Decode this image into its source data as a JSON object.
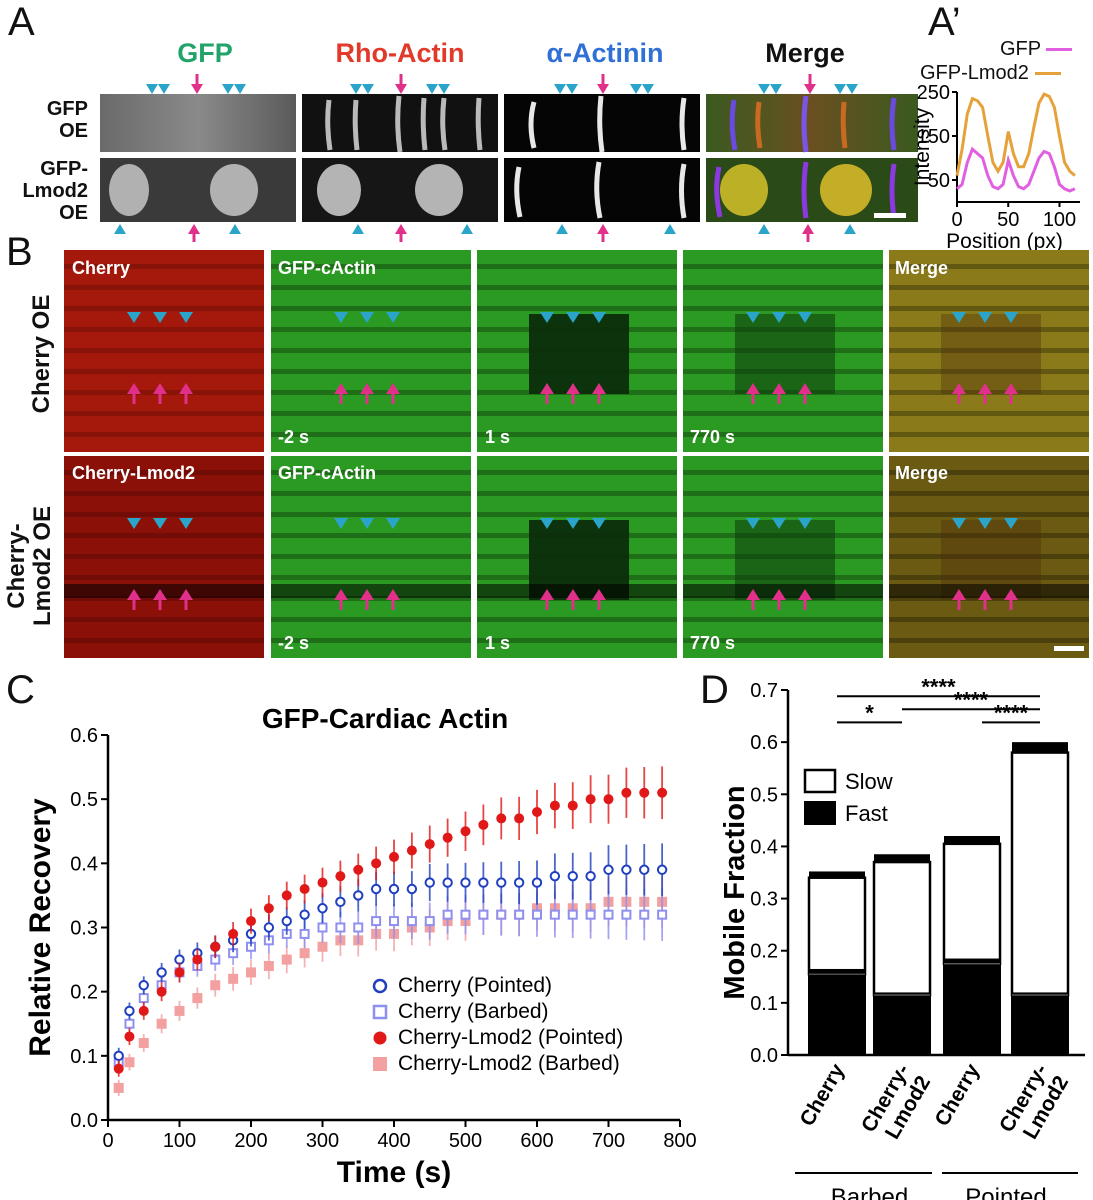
{
  "figure": {
    "panel_a": {
      "letter": "A",
      "headers": [
        {
          "text": "GFP",
          "color": "#22a36a"
        },
        {
          "text": "Rho-Actin",
          "color": "#e23a2a"
        },
        {
          "text": "α-Actinin",
          "color": "#2f6fd6"
        },
        {
          "text": "Merge",
          "color": "#111111"
        }
      ],
      "row_labels": [
        "GFP\nOE",
        "GFP-\nLmod2\nOE"
      ]
    },
    "panel_a_prime": {
      "letter": "A’",
      "legend": [
        {
          "text": "GFP",
          "color": "#e060e0"
        },
        {
          "text": "GFP-Lmod2",
          "color": "#e6a23a"
        }
      ],
      "ylabel": "Intensity",
      "xlabel": "Position (px)",
      "yticks": [
        "250",
        "150",
        "50"
      ],
      "xticks": [
        "0",
        "50",
        "100"
      ]
    },
    "panel_b": {
      "letter": "B",
      "row_labels": [
        "Cherry OE",
        "Cherry-\nLmod2 OE"
      ],
      "top_row_labels": [
        "Cherry",
        "GFP-cActin",
        "",
        "",
        "Merge"
      ],
      "bottom_row_labels": [
        "Cherry-Lmod2",
        "GFP-cActin",
        "",
        "",
        "Merge"
      ],
      "time_labels": [
        "",
        "-2 s",
        "1 s",
        "770 s",
        ""
      ]
    },
    "panel_c": {
      "letter": "C"
    },
    "panel_d": {
      "letter": "D"
    }
  },
  "colors": {
    "cyan_marker": "#2aa5c9",
    "magenta_marker": "#e0308a",
    "cherry_pointed": "#1f3fbf",
    "cherry_barbed": "#8f8ff0",
    "lmod2_pointed": "#e01818",
    "lmod2_barbed": "#f2a0a0"
  },
  "chart_data": [
    {
      "type": "line",
      "id": "A_prime",
      "title": "",
      "xlabel": "Position (px)",
      "ylabel": "Intensity",
      "xlim": [
        0,
        120
      ],
      "ylim": [
        0,
        250
      ],
      "yticks": [
        50,
        150,
        250
      ],
      "xticks": [
        0,
        50,
        100
      ],
      "series": [
        {
          "name": "GFP",
          "color": "#e060e0",
          "x": [
            0,
            5,
            10,
            15,
            20,
            25,
            30,
            35,
            40,
            45,
            50,
            55,
            60,
            65,
            70,
            75,
            80,
            85,
            90,
            95,
            100,
            105,
            110,
            115
          ],
          "y": [
            30,
            40,
            90,
            120,
            110,
            100,
            60,
            35,
            30,
            40,
            95,
            60,
            35,
            30,
            40,
            70,
            100,
            115,
            110,
            80,
            40,
            30,
            25,
            30
          ]
        },
        {
          "name": "GFP-Lmod2",
          "color": "#e6a23a",
          "x": [
            0,
            5,
            10,
            15,
            20,
            25,
            30,
            35,
            40,
            45,
            50,
            55,
            60,
            65,
            70,
            75,
            80,
            85,
            90,
            95,
            100,
            105,
            110,
            115
          ],
          "y": [
            60,
            120,
            200,
            235,
            230,
            215,
            150,
            90,
            70,
            90,
            160,
            110,
            80,
            80,
            110,
            170,
            225,
            245,
            240,
            215,
            150,
            90,
            70,
            60
          ]
        }
      ]
    },
    {
      "type": "scatter",
      "id": "C",
      "title": "GFP-Cardiac Actin",
      "xlabel": "Time (s)",
      "ylabel": "Relative Recovery",
      "xlim": [
        0,
        800
      ],
      "ylim": [
        0,
        0.6
      ],
      "xticks": [
        0,
        100,
        200,
        300,
        400,
        500,
        600,
        700,
        800
      ],
      "yticks": [
        0.0,
        0.1,
        0.2,
        0.3,
        0.4,
        0.5,
        0.6
      ],
      "legend": [
        "Cherry (Pointed)",
        "Cherry (Barbed)",
        "Cherry-Lmod2 (Pointed)",
        "Cherry-Lmod2 (Barbed)"
      ],
      "series": [
        {
          "name": "Cherry (Pointed)",
          "marker": "open-circle",
          "color": "#1f3fbf",
          "x": [
            15,
            30,
            50,
            75,
            100,
            125,
            150,
            175,
            200,
            225,
            250,
            275,
            300,
            325,
            350,
            375,
            400,
            425,
            450,
            475,
            500,
            525,
            550,
            575,
            600,
            625,
            650,
            675,
            700,
            725,
            750,
            775
          ],
          "y": [
            0.1,
            0.17,
            0.21,
            0.23,
            0.25,
            0.26,
            0.27,
            0.28,
            0.29,
            0.3,
            0.31,
            0.32,
            0.33,
            0.34,
            0.35,
            0.36,
            0.36,
            0.36,
            0.37,
            0.37,
            0.37,
            0.37,
            0.37,
            0.37,
            0.37,
            0.38,
            0.38,
            0.38,
            0.39,
            0.39,
            0.39,
            0.39
          ]
        },
        {
          "name": "Cherry (Barbed)",
          "marker": "open-square",
          "color": "#8f8ff0",
          "x": [
            15,
            30,
            50,
            75,
            100,
            125,
            150,
            175,
            200,
            225,
            250,
            275,
            300,
            325,
            350,
            375,
            400,
            425,
            450,
            475,
            500,
            525,
            550,
            575,
            600,
            625,
            650,
            675,
            700,
            725,
            750,
            775
          ],
          "y": [
            0.09,
            0.15,
            0.19,
            0.21,
            0.23,
            0.24,
            0.25,
            0.26,
            0.27,
            0.28,
            0.29,
            0.29,
            0.3,
            0.3,
            0.3,
            0.31,
            0.31,
            0.31,
            0.31,
            0.32,
            0.32,
            0.32,
            0.32,
            0.32,
            0.32,
            0.32,
            0.32,
            0.32,
            0.32,
            0.32,
            0.32,
            0.32
          ]
        },
        {
          "name": "Cherry-Lmod2 (Pointed)",
          "marker": "filled-circle",
          "color": "#e01818",
          "x": [
            15,
            30,
            50,
            75,
            100,
            125,
            150,
            175,
            200,
            225,
            250,
            275,
            300,
            325,
            350,
            375,
            400,
            425,
            450,
            475,
            500,
            525,
            550,
            575,
            600,
            625,
            650,
            675,
            700,
            725,
            750,
            775
          ],
          "y": [
            0.08,
            0.13,
            0.17,
            0.2,
            0.23,
            0.25,
            0.27,
            0.29,
            0.31,
            0.33,
            0.35,
            0.36,
            0.37,
            0.38,
            0.39,
            0.4,
            0.41,
            0.42,
            0.43,
            0.44,
            0.45,
            0.46,
            0.47,
            0.47,
            0.48,
            0.49,
            0.49,
            0.5,
            0.5,
            0.51,
            0.51,
            0.51
          ]
        },
        {
          "name": "Cherry-Lmod2 (Barbed)",
          "marker": "filled-square",
          "color": "#f2a0a0",
          "x": [
            15,
            30,
            50,
            75,
            100,
            125,
            150,
            175,
            200,
            225,
            250,
            275,
            300,
            325,
            350,
            375,
            400,
            425,
            450,
            475,
            500,
            525,
            550,
            575,
            600,
            625,
            650,
            675,
            700,
            725,
            750,
            775
          ],
          "y": [
            0.05,
            0.09,
            0.12,
            0.15,
            0.17,
            0.19,
            0.21,
            0.22,
            0.23,
            0.24,
            0.25,
            0.26,
            0.27,
            0.28,
            0.28,
            0.29,
            0.29,
            0.3,
            0.3,
            0.31,
            0.31,
            0.32,
            0.32,
            0.32,
            0.33,
            0.33,
            0.33,
            0.33,
            0.34,
            0.34,
            0.34,
            0.34
          ]
        }
      ]
    },
    {
      "type": "bar",
      "id": "D",
      "stacked": true,
      "ylabel": "Mobile Fraction",
      "ylim": [
        0,
        0.7
      ],
      "yticks": [
        0.0,
        0.1,
        0.2,
        0.3,
        0.4,
        0.5,
        0.6,
        0.7
      ],
      "categories": [
        "Cherry",
        "Cherry-\nLmod2",
        "Cherry",
        "Cherry-\nLmod2"
      ],
      "groups": [
        {
          "name": "Barbed",
          "categories": [
            0,
            1
          ]
        },
        {
          "name": "Pointed",
          "categories": [
            2,
            3
          ]
        }
      ],
      "series": [
        {
          "name": "Fast",
          "color": "#000000",
          "values": [
            0.155,
            0.115,
            0.175,
            0.115
          ],
          "errors": [
            0.01,
            0.005,
            0.01,
            0.005
          ]
        },
        {
          "name": "Slow",
          "color": "#ffffff",
          "values": [
            0.185,
            0.255,
            0.23,
            0.465
          ],
          "errors": [
            0.012,
            0.015,
            0.015,
            0.02
          ]
        }
      ],
      "legend": [
        "Slow",
        "Fast"
      ],
      "significance": [
        {
          "from": 0,
          "to": 1,
          "label": "*"
        },
        {
          "from": 0,
          "to": 3,
          "label": "****"
        },
        {
          "from": 1,
          "to": 3,
          "label": "****"
        },
        {
          "from": 2,
          "to": 3,
          "label": "****"
        }
      ]
    }
  ]
}
